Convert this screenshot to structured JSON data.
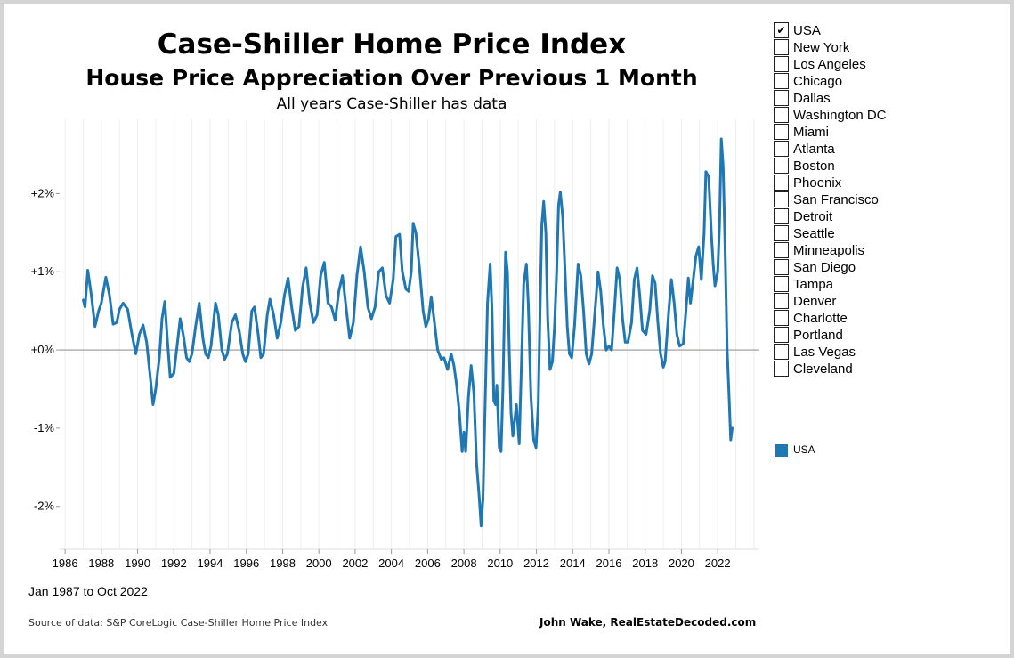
{
  "header": {
    "title": "Case-Shiller Home Price Index",
    "subtitle": "House Price Appreciation Over Previous 1 Month",
    "note": "All years Case-Shiller has data"
  },
  "footer": {
    "date_range": "Jan 1987 to Oct 2022",
    "source": "Source of data: S&P CoreLogic Case-Shiller Home Price Index",
    "credit": "John Wake, RealEstateDecoded.com"
  },
  "filter": {
    "check_glyph": "✔",
    "items": [
      {
        "label": "USA",
        "checked": true
      },
      {
        "label": "New York",
        "checked": false
      },
      {
        "label": "Los Angeles",
        "checked": false
      },
      {
        "label": "Chicago",
        "checked": false
      },
      {
        "label": "Dallas",
        "checked": false
      },
      {
        "label": "Washington DC",
        "checked": false
      },
      {
        "label": "Miami",
        "checked": false
      },
      {
        "label": "Atlanta",
        "checked": false
      },
      {
        "label": "Boston",
        "checked": false
      },
      {
        "label": "Phoenix",
        "checked": false
      },
      {
        "label": "San Francisco",
        "checked": false
      },
      {
        "label": "Detroit",
        "checked": false
      },
      {
        "label": "Seattle",
        "checked": false
      },
      {
        "label": "Minneapolis",
        "checked": false
      },
      {
        "label": "San Diego",
        "checked": false
      },
      {
        "label": "Tampa",
        "checked": false
      },
      {
        "label": "Denver",
        "checked": false
      },
      {
        "label": "Charlotte",
        "checked": false
      },
      {
        "label": "Portland",
        "checked": false
      },
      {
        "label": "Las Vegas",
        "checked": false
      },
      {
        "label": "Cleveland",
        "checked": false
      }
    ]
  },
  "legend": {
    "label": "USA",
    "color": "#1f77b4"
  },
  "colors": {
    "line": "#1f77b4",
    "zero_line": "#b0b0b0",
    "grid": "#eeeeee",
    "frame": "#d4d4d4"
  },
  "chart_data": {
    "type": "line",
    "title": "Case-Shiller Home Price Index",
    "subtitle": "House Price Appreciation Over Previous 1 Month",
    "xlabel": "",
    "ylabel": "",
    "x_ticks": [
      "1986",
      "1988",
      "1990",
      "1992",
      "1994",
      "1996",
      "1998",
      "2000",
      "2002",
      "2004",
      "2006",
      "2008",
      "2010",
      "2012",
      "2014",
      "2016",
      "2018",
      "2020",
      "2022"
    ],
    "y_ticks": [
      "+2%",
      "+1%",
      "+0%",
      "-1%",
      "-2%"
    ],
    "y_tick_values": [
      2,
      1,
      0,
      -1,
      -2
    ],
    "xlim": [
      1985.7,
      2024.3
    ],
    "ylim": [
      -2.55,
      2.95
    ],
    "grid": "vertical yearly lines",
    "series": [
      {
        "name": "USA",
        "unit": "percent",
        "points": [
          [
            1987.0,
            0.64
          ],
          [
            1987.1,
            0.55
          ],
          [
            1987.25,
            1.02
          ],
          [
            1987.45,
            0.7
          ],
          [
            1987.65,
            0.3
          ],
          [
            1987.85,
            0.5
          ],
          [
            1988.0,
            0.6
          ],
          [
            1988.25,
            0.93
          ],
          [
            1988.45,
            0.7
          ],
          [
            1988.65,
            0.33
          ],
          [
            1988.85,
            0.35
          ],
          [
            1989.0,
            0.52
          ],
          [
            1989.2,
            0.6
          ],
          [
            1989.45,
            0.52
          ],
          [
            1989.65,
            0.25
          ],
          [
            1989.9,
            -0.05
          ],
          [
            1990.1,
            0.2
          ],
          [
            1990.3,
            0.32
          ],
          [
            1990.5,
            0.1
          ],
          [
            1990.7,
            -0.35
          ],
          [
            1990.85,
            -0.7
          ],
          [
            1991.0,
            -0.5
          ],
          [
            1991.2,
            -0.1
          ],
          [
            1991.35,
            0.4
          ],
          [
            1991.5,
            0.62
          ],
          [
            1991.65,
            0.1
          ],
          [
            1991.8,
            -0.35
          ],
          [
            1992.0,
            -0.3
          ],
          [
            1992.2,
            0.1
          ],
          [
            1992.35,
            0.4
          ],
          [
            1992.55,
            0.15
          ],
          [
            1992.7,
            -0.1
          ],
          [
            1992.85,
            -0.15
          ],
          [
            1993.0,
            -0.05
          ],
          [
            1993.2,
            0.3
          ],
          [
            1993.4,
            0.6
          ],
          [
            1993.6,
            0.15
          ],
          [
            1993.75,
            -0.05
          ],
          [
            1993.9,
            -0.1
          ],
          [
            1994.05,
            0.05
          ],
          [
            1994.3,
            0.6
          ],
          [
            1994.45,
            0.45
          ],
          [
            1994.65,
            0.0
          ],
          [
            1994.8,
            -0.12
          ],
          [
            1994.95,
            -0.05
          ],
          [
            1995.2,
            0.35
          ],
          [
            1995.4,
            0.45
          ],
          [
            1995.6,
            0.25
          ],
          [
            1995.8,
            -0.05
          ],
          [
            1995.95,
            -0.15
          ],
          [
            1996.1,
            -0.05
          ],
          [
            1996.3,
            0.5
          ],
          [
            1996.45,
            0.55
          ],
          [
            1996.65,
            0.2
          ],
          [
            1996.8,
            -0.1
          ],
          [
            1996.95,
            -0.05
          ],
          [
            1997.15,
            0.45
          ],
          [
            1997.3,
            0.65
          ],
          [
            1997.5,
            0.45
          ],
          [
            1997.7,
            0.15
          ],
          [
            1997.9,
            0.35
          ],
          [
            1998.1,
            0.7
          ],
          [
            1998.3,
            0.92
          ],
          [
            1998.5,
            0.55
          ],
          [
            1998.7,
            0.25
          ],
          [
            1998.9,
            0.3
          ],
          [
            1999.1,
            0.8
          ],
          [
            1999.3,
            1.05
          ],
          [
            1999.5,
            0.6
          ],
          [
            1999.7,
            0.35
          ],
          [
            1999.9,
            0.45
          ],
          [
            2000.1,
            0.95
          ],
          [
            2000.3,
            1.12
          ],
          [
            2000.5,
            0.6
          ],
          [
            2000.7,
            0.55
          ],
          [
            2000.9,
            0.38
          ],
          [
            2001.1,
            0.75
          ],
          [
            2001.3,
            0.95
          ],
          [
            2001.5,
            0.55
          ],
          [
            2001.7,
            0.15
          ],
          [
            2001.9,
            0.35
          ],
          [
            2002.1,
            0.95
          ],
          [
            2002.3,
            1.32
          ],
          [
            2002.5,
            1.0
          ],
          [
            2002.7,
            0.55
          ],
          [
            2002.9,
            0.4
          ],
          [
            2003.1,
            0.55
          ],
          [
            2003.3,
            1.0
          ],
          [
            2003.5,
            1.05
          ],
          [
            2003.7,
            0.7
          ],
          [
            2003.9,
            0.6
          ],
          [
            2004.1,
            0.9
          ],
          [
            2004.25,
            1.45
          ],
          [
            2004.45,
            1.48
          ],
          [
            2004.6,
            1.0
          ],
          [
            2004.8,
            0.78
          ],
          [
            2004.95,
            0.75
          ],
          [
            2005.1,
            1.0
          ],
          [
            2005.2,
            1.62
          ],
          [
            2005.35,
            1.5
          ],
          [
            2005.55,
            1.05
          ],
          [
            2005.75,
            0.5
          ],
          [
            2005.9,
            0.3
          ],
          [
            2006.05,
            0.4
          ],
          [
            2006.2,
            0.68
          ],
          [
            2006.35,
            0.4
          ],
          [
            2006.55,
            0.0
          ],
          [
            2006.75,
            -0.12
          ],
          [
            2006.9,
            -0.1
          ],
          [
            2007.1,
            -0.25
          ],
          [
            2007.3,
            -0.05
          ],
          [
            2007.45,
            -0.2
          ],
          [
            2007.6,
            -0.45
          ],
          [
            2007.75,
            -0.8
          ],
          [
            2007.9,
            -1.3
          ],
          [
            2008.0,
            -1.05
          ],
          [
            2008.1,
            -1.3
          ],
          [
            2008.25,
            -0.6
          ],
          [
            2008.4,
            -0.2
          ],
          [
            2008.55,
            -0.55
          ],
          [
            2008.7,
            -1.45
          ],
          [
            2008.85,
            -1.9
          ],
          [
            2008.95,
            -2.25
          ],
          [
            2009.05,
            -1.9
          ],
          [
            2009.15,
            -0.9
          ],
          [
            2009.3,
            0.6
          ],
          [
            2009.45,
            1.1
          ],
          [
            2009.55,
            0.5
          ],
          [
            2009.65,
            -0.65
          ],
          [
            2009.75,
            -0.7
          ],
          [
            2009.82,
            -0.45
          ],
          [
            2009.95,
            -1.25
          ],
          [
            2010.05,
            -1.3
          ],
          [
            2010.15,
            -0.5
          ],
          [
            2010.3,
            1.25
          ],
          [
            2010.4,
            1.0
          ],
          [
            2010.5,
            0.0
          ],
          [
            2010.6,
            -0.8
          ],
          [
            2010.7,
            -1.1
          ],
          [
            2010.8,
            -0.9
          ],
          [
            2010.9,
            -0.7
          ],
          [
            2011.05,
            -1.2
          ],
          [
            2011.15,
            -0.4
          ],
          [
            2011.3,
            0.85
          ],
          [
            2011.45,
            1.1
          ],
          [
            2011.55,
            0.6
          ],
          [
            2011.7,
            -0.6
          ],
          [
            2011.85,
            -1.15
          ],
          [
            2011.98,
            -1.25
          ],
          [
            2012.1,
            -0.7
          ],
          [
            2012.2,
            0.5
          ],
          [
            2012.3,
            1.6
          ],
          [
            2012.4,
            1.9
          ],
          [
            2012.52,
            1.5
          ],
          [
            2012.62,
            0.4
          ],
          [
            2012.75,
            -0.25
          ],
          [
            2012.88,
            -0.15
          ],
          [
            2013.0,
            0.3
          ],
          [
            2013.12,
            1.0
          ],
          [
            2013.22,
            1.85
          ],
          [
            2013.32,
            2.02
          ],
          [
            2013.45,
            1.7
          ],
          [
            2013.58,
            1.0
          ],
          [
            2013.7,
            0.3
          ],
          [
            2013.82,
            -0.05
          ],
          [
            2013.95,
            -0.1
          ],
          [
            2014.1,
            0.3
          ],
          [
            2014.3,
            1.1
          ],
          [
            2014.45,
            0.95
          ],
          [
            2014.6,
            0.5
          ],
          [
            2014.75,
            -0.05
          ],
          [
            2014.9,
            -0.18
          ],
          [
            2015.05,
            -0.05
          ],
          [
            2015.2,
            0.4
          ],
          [
            2015.4,
            1.0
          ],
          [
            2015.55,
            0.75
          ],
          [
            2015.7,
            0.3
          ],
          [
            2015.85,
            0.0
          ],
          [
            2016.0,
            0.05
          ],
          [
            2016.15,
            0.0
          ],
          [
            2016.3,
            0.5
          ],
          [
            2016.45,
            1.05
          ],
          [
            2016.6,
            0.9
          ],
          [
            2016.75,
            0.4
          ],
          [
            2016.9,
            0.1
          ],
          [
            2017.05,
            0.1
          ],
          [
            2017.25,
            0.35
          ],
          [
            2017.4,
            0.9
          ],
          [
            2017.55,
            1.05
          ],
          [
            2017.7,
            0.7
          ],
          [
            2017.85,
            0.25
          ],
          [
            2018.05,
            0.2
          ],
          [
            2018.25,
            0.5
          ],
          [
            2018.4,
            0.95
          ],
          [
            2018.55,
            0.85
          ],
          [
            2018.7,
            0.35
          ],
          [
            2018.85,
            -0.05
          ],
          [
            2019.0,
            -0.22
          ],
          [
            2019.1,
            -0.15
          ],
          [
            2019.3,
            0.5
          ],
          [
            2019.45,
            0.9
          ],
          [
            2019.6,
            0.6
          ],
          [
            2019.75,
            0.2
          ],
          [
            2019.9,
            0.05
          ],
          [
            2020.1,
            0.08
          ],
          [
            2020.25,
            0.5
          ],
          [
            2020.38,
            0.92
          ],
          [
            2020.5,
            0.6
          ],
          [
            2020.65,
            0.9
          ],
          [
            2020.8,
            1.2
          ],
          [
            2020.95,
            1.32
          ],
          [
            2021.1,
            0.9
          ],
          [
            2021.25,
            1.5
          ],
          [
            2021.35,
            2.28
          ],
          [
            2021.5,
            2.22
          ],
          [
            2021.65,
            1.5
          ],
          [
            2021.75,
            1.1
          ],
          [
            2021.85,
            0.82
          ],
          [
            2022.0,
            1.0
          ],
          [
            2022.1,
            1.6
          ],
          [
            2022.2,
            2.7
          ],
          [
            2022.3,
            2.35
          ],
          [
            2022.4,
            1.4
          ],
          [
            2022.52,
            0.0
          ],
          [
            2022.62,
            -0.55
          ],
          [
            2022.72,
            -1.15
          ],
          [
            2022.8,
            -1.0
          ]
        ]
      }
    ]
  }
}
